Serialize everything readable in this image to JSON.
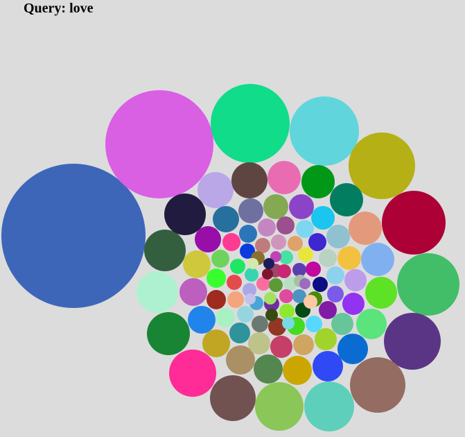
{
  "title": "Query: love",
  "bubble_colors": [
    "#3d66b9",
    "#d95fe3",
    "#10dc8a",
    "#61d5dc",
    "#b4b015",
    "#ac0037",
    "#42bd68",
    "#5b3585",
    "#946c62",
    "#5ecfba",
    "#8ac658",
    "#715251",
    "#ff2b96",
    "#188534",
    "#aef1d1",
    "#335f3e",
    "#211c3f",
    "#baa7e8",
    "#5f4541",
    "#e96cb2",
    "#019818",
    "#037d60",
    "#e39a7c",
    "#81b0f0",
    "#5ee225",
    "#5be37c",
    "#0a6cd2",
    "#2f4af4",
    "#cba601",
    "#54874f",
    "#aa9064",
    "#c0a623",
    "#2084ea",
    "#bc5fbe",
    "#cfc83d",
    "#970fa8",
    "#26709e",
    "#6e70a0",
    "#85a852",
    "#8b44c7",
    "#1ac5ef",
    "#8fc1d0",
    "#f3c140",
    "#bd9ce9",
    "#9432f1",
    "#66c69a",
    "#a1d32d",
    "#d0a561",
    "#c53f68",
    "#bec38a",
    "#2e939b",
    "#a9f0c3",
    "#9f2a1f",
    "#38fe2e",
    "#6ed35c",
    "#fd3b93",
    "#2c76b8",
    "#c486c1",
    "#9b4f8c",
    "#7ed7f0",
    "#3e27d1",
    "#b8d2c4",
    "#8dd2ed",
    "#7a5be9",
    "#811ba6",
    "#59d8ff",
    "#44db23",
    "#913724",
    "#6b7a71",
    "#98d4e0",
    "#f4a57d",
    "#e54a4d",
    "#1ee763",
    "#0b3adf",
    "#c07c7d",
    "#d095bd",
    "#e0a26b",
    "#e8e63c",
    "#c1089f",
    "#0c0f83",
    "#478b06",
    "#044a17",
    "#8fe82d",
    "#6e2fa0",
    "#38d4b2",
    "#aaa7e6",
    "#89702d",
    "#fb6da1",
    "#9a4869",
    "#45e2a3",
    "#c82773",
    "#b6dfc6",
    "#5d9a36",
    "#df4a9b",
    "#4b94c2",
    "#5b3fb0",
    "#be43b7",
    "#7c1530",
    "#d4e8ad",
    "#1d1b5c",
    "#374b11",
    "#49a5d3",
    "#77d9e3",
    "#fdc9a5",
    "#a7c0a3",
    "#9a6bc1",
    "#a3e261",
    "#c2c3ea"
  ]
}
